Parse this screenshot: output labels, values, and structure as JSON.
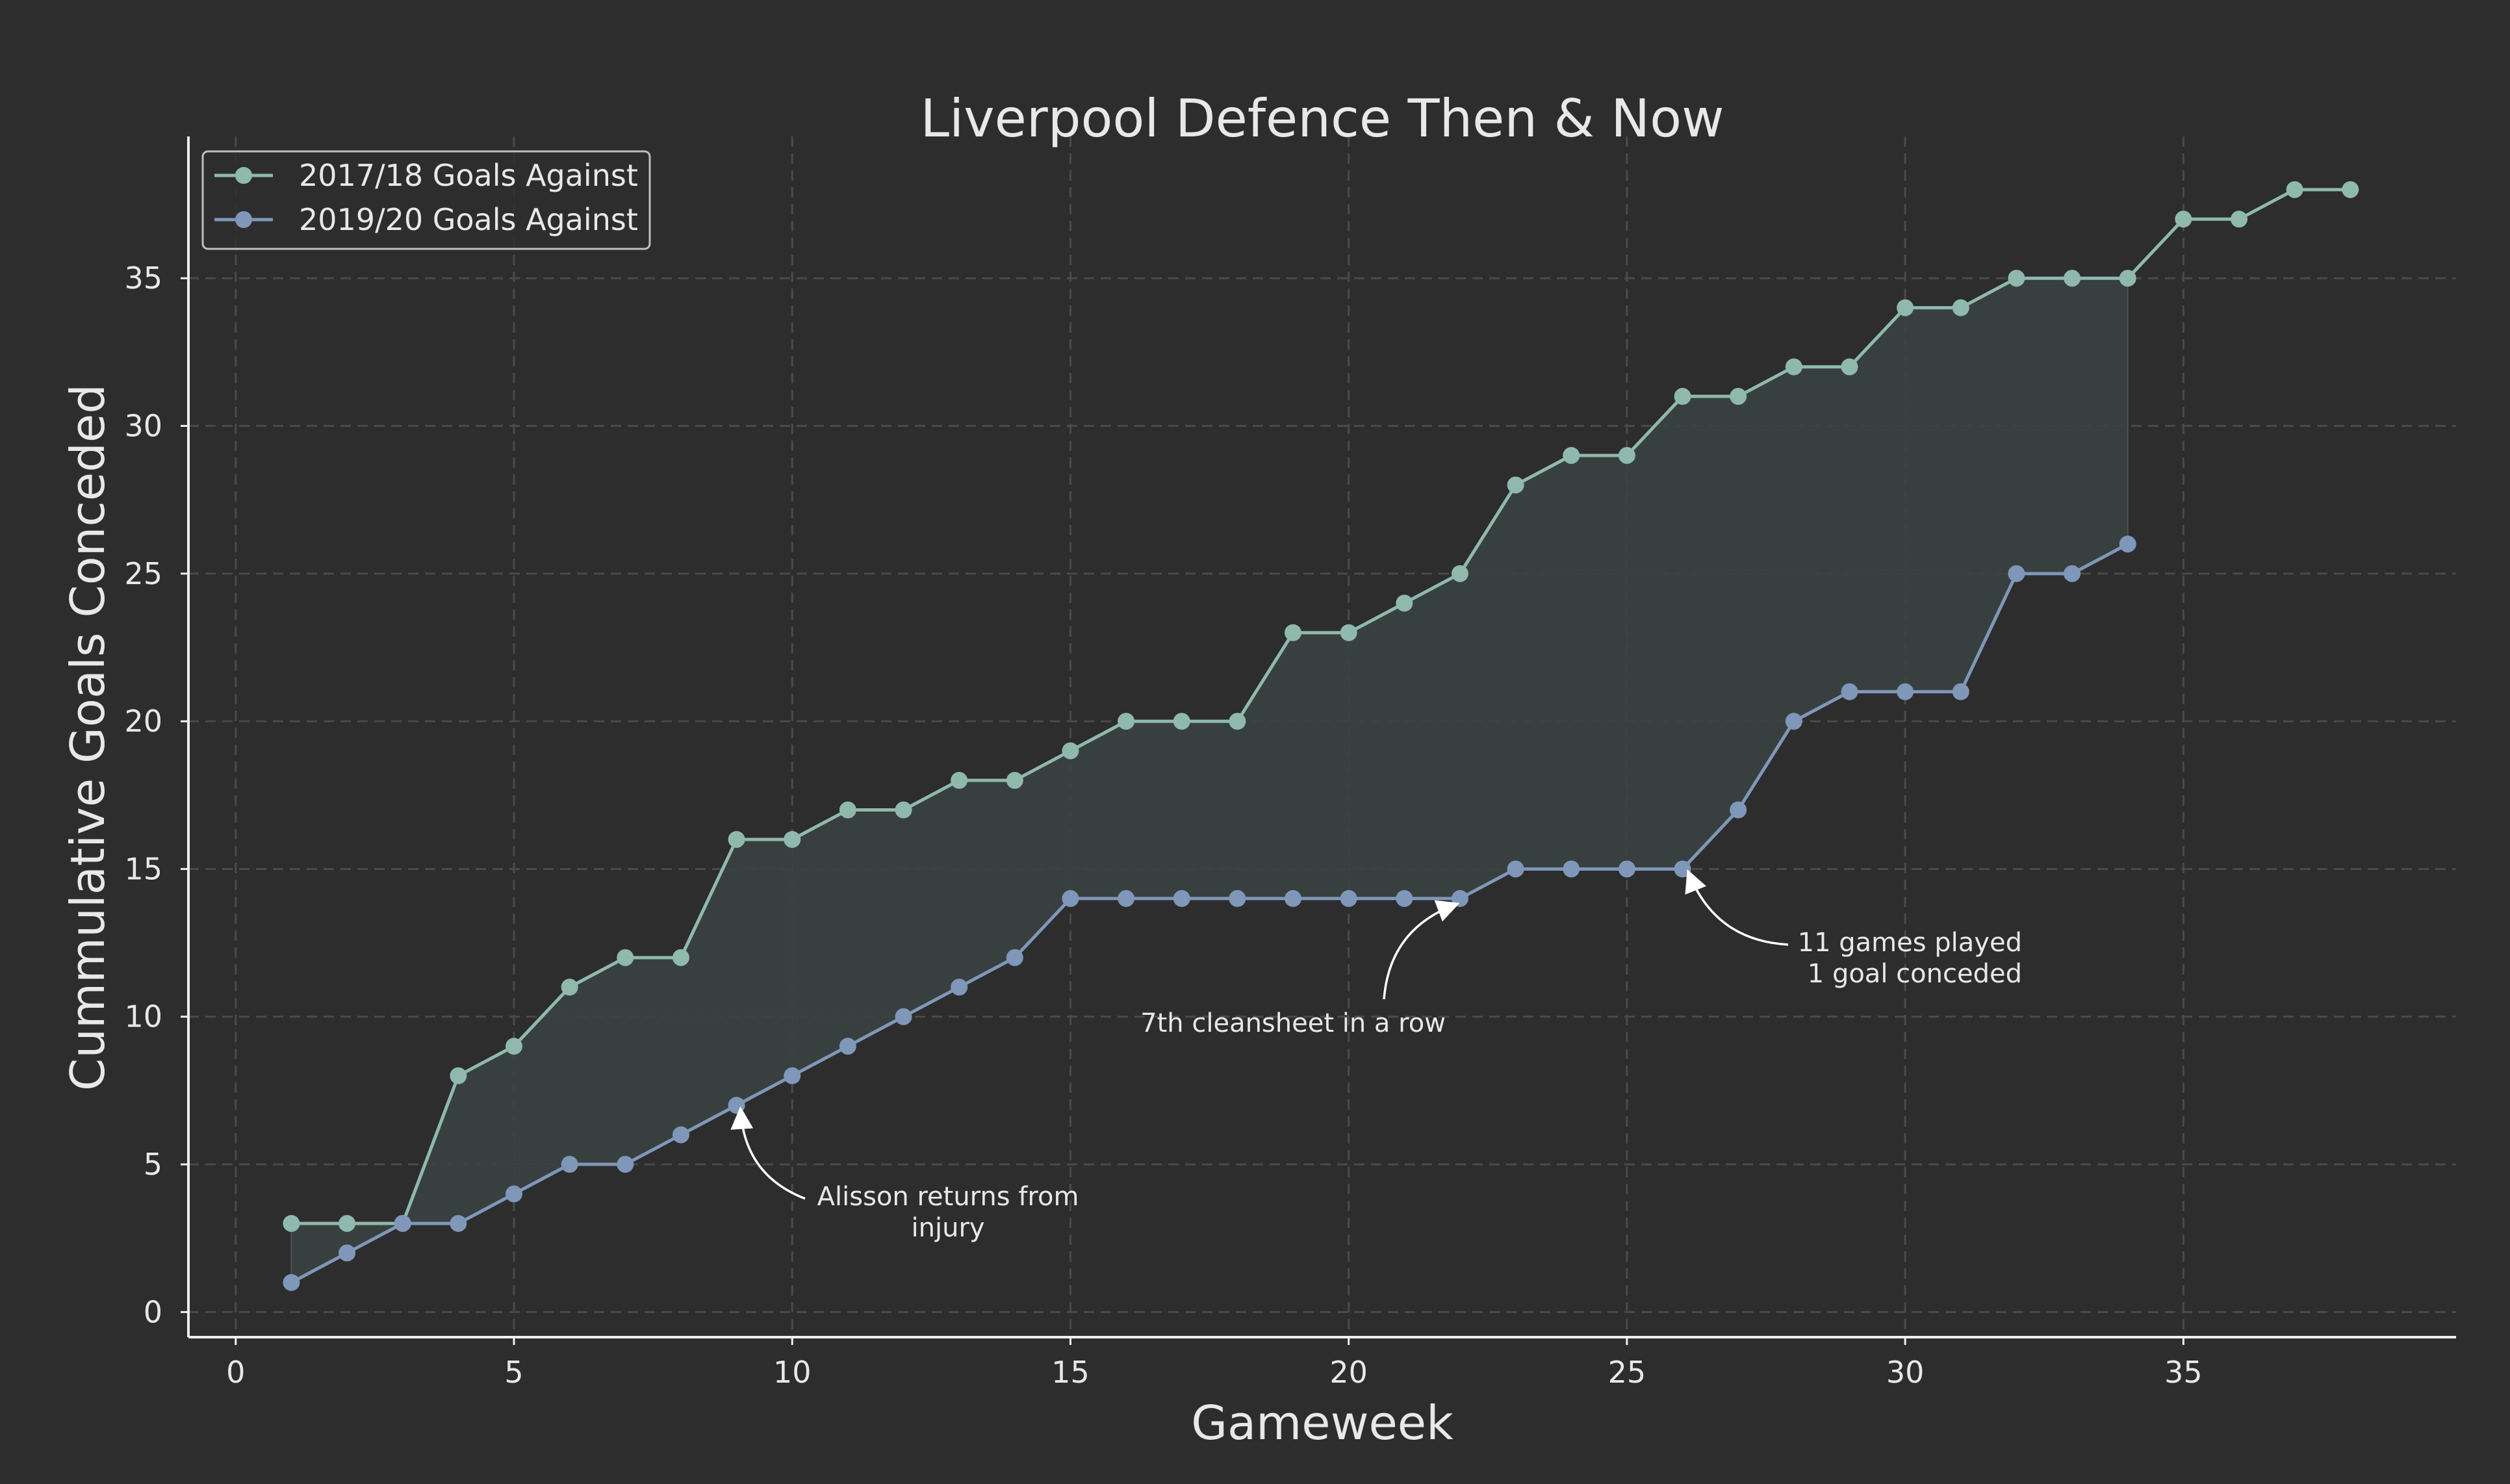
{
  "chart_data": {
    "type": "line",
    "title": "Liverpool Defence Then & Now",
    "xlabel": "Gameweek",
    "ylabel": "Cummulative Goals Conceded",
    "xlim": [
      -0.85,
      39.9
    ],
    "ylim": [
      -0.85,
      39.8
    ],
    "xticks": [
      0,
      5,
      10,
      15,
      20,
      25,
      30,
      35
    ],
    "yticks": [
      0,
      5,
      10,
      15,
      20,
      25,
      30,
      35
    ],
    "grid": true,
    "legend_position": "top-left",
    "series": [
      {
        "name": "2017/18 Goals Against",
        "color": "#8fb9ad",
        "x": [
          1,
          2,
          3,
          4,
          5,
          6,
          7,
          8,
          9,
          10,
          11,
          12,
          13,
          14,
          15,
          16,
          17,
          18,
          19,
          20,
          21,
          22,
          23,
          24,
          25,
          26,
          27,
          28,
          29,
          30,
          31,
          32,
          33,
          34,
          35,
          36,
          37,
          38
        ],
        "values": [
          3,
          3,
          3,
          8,
          9,
          11,
          12,
          12,
          16,
          16,
          17,
          17,
          18,
          18,
          19,
          20,
          20,
          20,
          23,
          23,
          24,
          25,
          28,
          29,
          29,
          31,
          31,
          32,
          32,
          34,
          34,
          35,
          35,
          35,
          37,
          37,
          38,
          38
        ]
      },
      {
        "name": "2019/20 Goals Against",
        "color": "#7f97b9",
        "x": [
          1,
          2,
          3,
          4,
          5,
          6,
          7,
          8,
          9,
          10,
          11,
          12,
          13,
          14,
          15,
          16,
          17,
          18,
          19,
          20,
          21,
          22,
          23,
          24,
          25,
          26,
          27,
          28,
          29,
          30,
          31,
          32,
          33,
          34
        ],
        "values": [
          1,
          2,
          3,
          3,
          4,
          5,
          5,
          6,
          7,
          8,
          9,
          10,
          11,
          12,
          14,
          14,
          14,
          14,
          14,
          14,
          14,
          14,
          15,
          15,
          15,
          15,
          17,
          20,
          21,
          21,
          21,
          25,
          25,
          26
        ]
      }
    ],
    "fill_between": {
      "from_x": 1,
      "to_x": 34,
      "color": "#3a4241"
    },
    "annotations": [
      {
        "lines": [
          "Alisson returns from",
          "injury"
        ],
        "point": [
          9,
          7
        ],
        "text_pos": [
          12.8,
          3.4
        ],
        "align": "middle"
      },
      {
        "lines": [
          "7th cleansheet in a row"
        ],
        "point": [
          22,
          14
        ],
        "text_pos": [
          19,
          9.8
        ],
        "align": "middle"
      },
      {
        "lines": [
          "11 games played",
          "1 goal conceded"
        ],
        "point": [
          26,
          15
        ],
        "text_pos": [
          32.1,
          12
        ],
        "align": "end"
      }
    ]
  }
}
